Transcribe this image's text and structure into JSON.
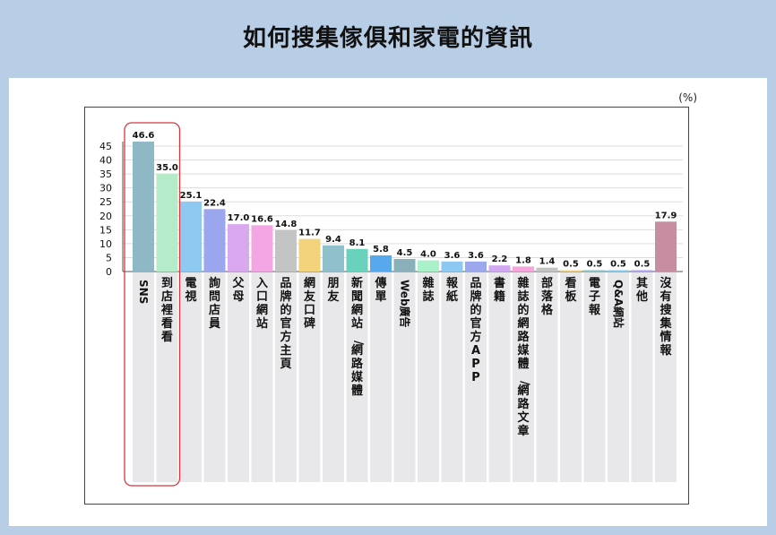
{
  "title": "如何搜集傢俱和家電的資訊",
  "unit": "(%)",
  "chart_data": {
    "type": "bar",
    "title": "如何搜集傢俱和家電的資訊",
    "ylabel": "(%)",
    "ylim": [
      0,
      45
    ],
    "yticks": [
      0,
      5,
      10,
      15,
      20,
      25,
      30,
      35,
      40,
      45
    ],
    "grid": true,
    "categories": [
      "SNS",
      "到店裡看看",
      "電視",
      "詢問店員",
      "父母",
      "入口網站",
      "品牌的官方主頁",
      "網友口碑",
      "朋友",
      "新聞網站/網路媒體",
      "傳單",
      "Web廣告",
      "雜誌",
      "報紙",
      "品牌的官方APP",
      "書籍",
      "雜誌的網路媒體/網路文章",
      "部落格",
      "看板",
      "電子報",
      "Q&A網站",
      "其他",
      "沒有搜集情報"
    ],
    "values": [
      46.6,
      35.0,
      25.1,
      22.4,
      17.0,
      16.6,
      14.8,
      11.7,
      9.4,
      8.1,
      5.8,
      4.5,
      4.0,
      3.6,
      3.6,
      2.2,
      1.8,
      1.4,
      0.5,
      0.5,
      0.5,
      0.5,
      17.9
    ],
    "value_labels": [
      "46.6",
      "35.0",
      "25.1",
      "22.4",
      "17.0",
      "16.6",
      "14.8",
      "11.7",
      "9.4",
      "8.1",
      "5.8",
      "4.5",
      "4.0",
      "3.6",
      "3.6",
      "2.2",
      "1.8",
      "1.4",
      "0.5",
      "0.5",
      "0.5",
      "0.5",
      "17.9"
    ],
    "colors": [
      "#8fb8c6",
      "#b5ebc9",
      "#8ec9f2",
      "#9ba6ee",
      "#daa8ee",
      "#f4a6e4",
      "#c4c4c4",
      "#f2d27a",
      "#90c0cc",
      "#68d2bd",
      "#58a8ee",
      "#8ab0bc",
      "#aaf0c8",
      "#8cc8f2",
      "#9ca8ee",
      "#d2a8f2",
      "#f4a6dc",
      "#c4c4c4",
      "#f2d888",
      "#90c8c8",
      "#88d0f2",
      "#b0a8f0",
      "#c68ea0"
    ],
    "highlight_categories": [
      "SNS",
      "到店裡看看"
    ],
    "highlight_color": "#d9363e"
  }
}
